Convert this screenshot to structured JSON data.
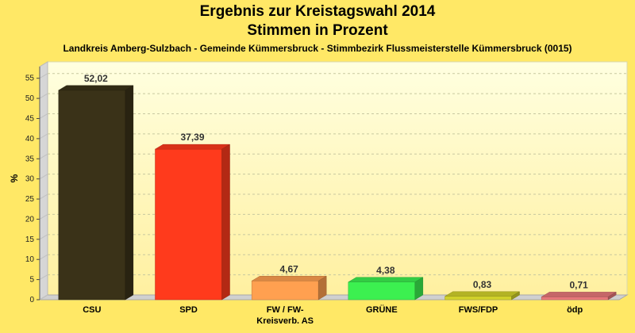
{
  "chart_data": {
    "type": "bar",
    "title": "Ergebnis zur Kreistagswahl 2014",
    "title_line2": "Stimmen in Prozent",
    "subtitle": "Landkreis Amberg-Sulzbach - Gemeinde Kümmersbruck - Stimmbezirk Flussmeisterstelle Kümmersbruck (0015)",
    "ylabel": "%",
    "xlabel": "",
    "ylim": [
      0,
      55
    ],
    "yticks": [
      0,
      5,
      10,
      15,
      20,
      25,
      30,
      35,
      40,
      45,
      50,
      55
    ],
    "categories": [
      [
        "CSU"
      ],
      [
        "SPD"
      ],
      [
        "FW / FW-",
        "Kreisverb. AS"
      ],
      [
        "GRÜNE"
      ],
      [
        "FWS/FDP"
      ],
      [
        "ödp"
      ]
    ],
    "values": [
      52.02,
      37.39,
      4.67,
      4.38,
      0.83,
      0.71
    ],
    "value_labels": [
      "52,02",
      "37,39",
      "4,67",
      "4,38",
      "0,83",
      "0,71"
    ],
    "colors": [
      "#3a3218",
      "#ff3a1c",
      "#ffa050",
      "#3cf050",
      "#d2d22a",
      "#e8787a"
    ],
    "grid": true,
    "legend": "none",
    "background": "#ffe866"
  }
}
